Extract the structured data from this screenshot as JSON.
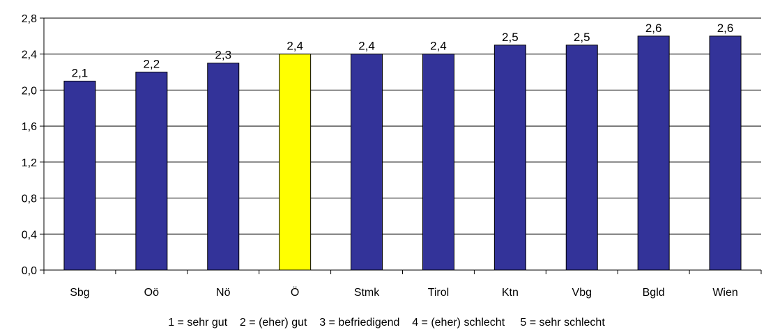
{
  "chart_data": {
    "type": "bar",
    "categories": [
      "Sbg",
      "Oö",
      "Nö",
      "Ö",
      "Stmk",
      "Tirol",
      "Ktn",
      "Vbg",
      "Bgld",
      "Wien"
    ],
    "values": [
      2.1,
      2.2,
      2.3,
      2.4,
      2.4,
      2.4,
      2.5,
      2.5,
      2.6,
      2.6
    ],
    "data_labels": [
      "2,1",
      "2,2",
      "2,3",
      "2,4",
      "2,4",
      "2,4",
      "2,5",
      "2,5",
      "2,6",
      "2,6"
    ],
    "y_ticks": [
      0.0,
      0.4,
      0.8,
      1.2,
      1.6,
      2.0,
      2.4,
      2.8
    ],
    "y_tick_labels": [
      "0,0",
      "0,4",
      "0,8",
      "1,2",
      "1,6",
      "2,0",
      "2,4",
      "2,8"
    ],
    "ylim": [
      0,
      2.8
    ],
    "grid": "horizontal",
    "bar_color": "#333399",
    "highlight_color": "#FFFF00",
    "highlight_category": "Ö",
    "note": "1 = sehr gut    2 = (eher) gut    3 = befriedigend    4 = (eher) schlecht     5 = sehr schlecht"
  }
}
